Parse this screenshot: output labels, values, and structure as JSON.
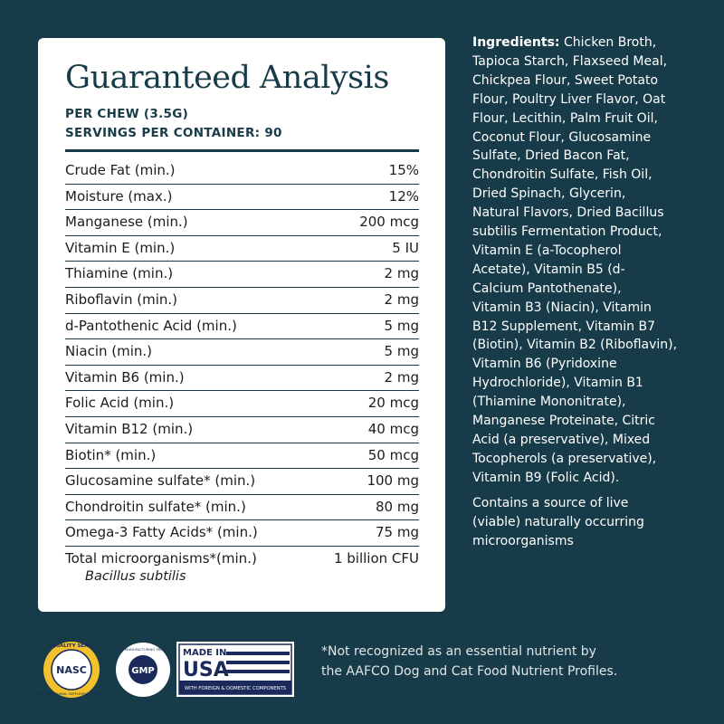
{
  "analysis": {
    "title": "Guaranteed Analysis",
    "per_chew": "PER CHEW (3.5G)",
    "servings": "SERVINGS PER CONTAINER: 90",
    "rows": [
      [
        "Crude Fat (min.)",
        "15%"
      ],
      [
        "Moisture (max.)",
        "12%"
      ],
      [
        "Manganese (min.)",
        "200 mcg"
      ],
      [
        "Vitamin E (min.)",
        "5 IU"
      ],
      [
        "Thiamine (min.)",
        "2 mg"
      ],
      [
        "Riboflavin (min.)",
        "2 mg"
      ],
      [
        "d-Pantothenic Acid (min.)",
        "5 mg"
      ],
      [
        "Niacin (min.)",
        "5 mg"
      ],
      [
        "Vitamin B6 (min.)",
        "2 mg"
      ],
      [
        "Folic Acid (min.)",
        "20 mcg"
      ],
      [
        "Vitamin B12 (min.)",
        "40 mcg"
      ],
      [
        "Biotin* (min.)",
        "50 mcg"
      ],
      [
        "Glucosamine sulfate* (min.)",
        "100 mg"
      ],
      [
        "Chondroitin sulfate* (min.)",
        "80 mg"
      ],
      [
        "Omega-3 Fatty Acids* (min.)",
        "75 mg"
      ],
      [
        "Total microorganisms*(min.)",
        "1 billion CFU"
      ]
    ],
    "sub_note": "Bacillus subtilis"
  },
  "ingredients": {
    "label": "Ingredients:",
    "lines": [
      "Chicken Broth,",
      "Tapioca Starch, Flaxseed Meal,",
      "Chickpea Flour, Sweet Potato",
      "Flour, Poultry Liver Flavor, Oat",
      "Flour, Lecithin, Palm Fruit Oil,",
      "Coconut Flour, Glucosamine",
      "Sulfate, Dried Bacon Fat,",
      "Chondroitin Sulfate, Fish Oil,",
      "Dried Spinach, Glycerin,",
      "Natural Flavors, Dried Bacillus",
      "subtilis Fermentation Product,",
      "Vitamin E (a-Tocopherol",
      "Acetate), Vitamin B5 (d-",
      "Calcium Pantothenate),",
      "Vitamin B3 (Niacin), Vitamin",
      "B12 Supplement, Vitamin B7",
      "(Biotin), Vitamin B2 (Riboflavin),",
      "Vitamin B6 (Pyridoxine",
      "Hydrochloride), Vitamin B1",
      "(Thiamine Mononitrate),",
      "Manganese Proteinate, Citric",
      "Acid (a preservative), Mixed",
      "Tocopherols (a preservative),",
      "Vitamin B9 (Folic Acid)."
    ]
  },
  "contains": [
    "Contains a source of live",
    "(viable) naturally occurring",
    "microorganisms"
  ],
  "footnote": [
    "*Not recognized as an essential nutrient by",
    "the AAFCO Dog and Cat Food Nutrient Profiles."
  ],
  "badges": {
    "nasc_top": "QUALITY SEAL",
    "nasc": "NASC",
    "nasc_bottom": "NATIONAL ANIMAL SUPPLEMENT COUNCIL",
    "gmp": "GMP",
    "gmp_ring": "GOOD MANUFACTURING PRACTICE",
    "usa_top": "MADE IN",
    "usa": "USA",
    "usa_bottom": "WITH FOREIGN & DOMESTIC COMPONENTS"
  }
}
